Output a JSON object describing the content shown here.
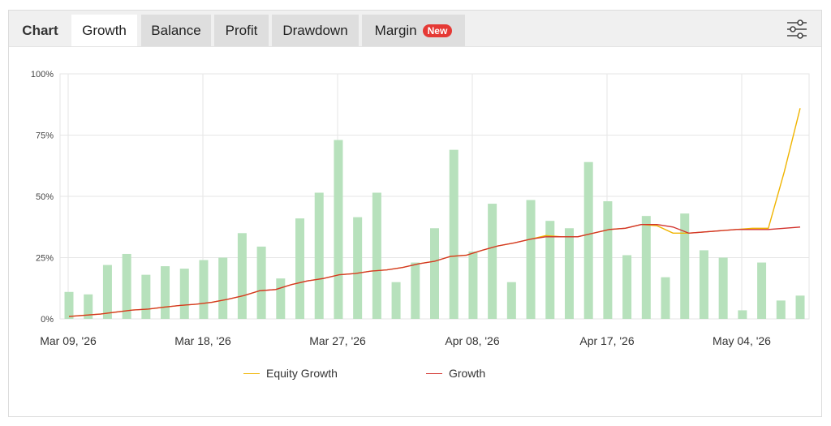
{
  "tabs": [
    {
      "label": "Chart",
      "kind": "label"
    },
    {
      "label": "Growth",
      "kind": "active"
    },
    {
      "label": "Balance",
      "kind": "tab"
    },
    {
      "label": "Profit",
      "kind": "tab"
    },
    {
      "label": "Drawdown",
      "kind": "tab"
    },
    {
      "label": "Margin",
      "kind": "tab",
      "badge": "New"
    }
  ],
  "settings_icon": "sliders-icon",
  "colors": {
    "bar": "#b7e1bc",
    "growth": "#d2322d",
    "equity": "#f0b400",
    "grid": "#e6e6e6",
    "badge": "#e53935"
  },
  "chart_data": {
    "type": "bar+line",
    "y_ticks": [
      "0%",
      "25%",
      "50%",
      "75%",
      "100%"
    ],
    "ylim": [
      0,
      100
    ],
    "x_ticks": [
      "Mar 09, '26",
      "Mar 18, '26",
      "Mar 27, '26",
      "Apr 08, '26",
      "Apr 17, '26",
      "May 04, '26"
    ],
    "bars": [
      11,
      10,
      22,
      26.5,
      18,
      21.5,
      20.5,
      24,
      25,
      35,
      29.5,
      16.5,
      41,
      51.5,
      73,
      41.5,
      51.5,
      15,
      23,
      37,
      69,
      27.5,
      47,
      15,
      48.5,
      40,
      37,
      64,
      48,
      26,
      42,
      17,
      43,
      28,
      25,
      3.5,
      23,
      7.5,
      9.5
    ],
    "series": [
      {
        "name": "Equity Growth",
        "values": [
          1,
          1.5,
          2,
          2.8,
          3.6,
          4,
          4.8,
          5.5,
          6,
          6.8,
          8,
          9.5,
          11.5,
          12,
          14,
          15.5,
          16.5,
          18,
          18.5,
          19.5,
          20,
          21,
          22.5,
          23.5,
          25.5,
          26,
          28,
          29.8,
          31,
          32.5,
          34,
          33.5,
          33.5,
          35,
          36.5,
          37,
          38.5,
          38,
          35,
          35,
          35.5,
          36,
          36.5,
          37,
          37,
          60,
          86
        ]
      },
      {
        "name": "Growth",
        "values": [
          1,
          1.5,
          2,
          2.8,
          3.6,
          4,
          4.8,
          5.5,
          6,
          6.8,
          8,
          9.5,
          11.5,
          12,
          14,
          15.5,
          16.5,
          18,
          18.5,
          19.5,
          20,
          21,
          22.5,
          23.5,
          25.5,
          26,
          28,
          29.8,
          31,
          32.5,
          33.5,
          33.5,
          33.5,
          35,
          36.5,
          37,
          38.5,
          38.5,
          37.5,
          35,
          35.5,
          36,
          36.5,
          36.5,
          36.5,
          37,
          37.5
        ]
      }
    ]
  }
}
